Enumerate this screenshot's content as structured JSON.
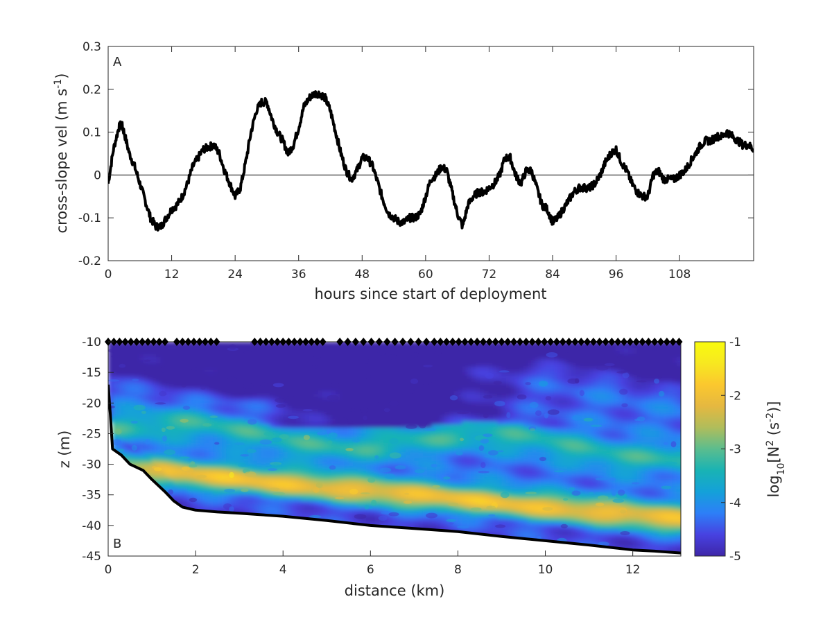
{
  "chart_data": [
    {
      "type": "line",
      "panel_label": "A",
      "xlabel": "hours since start of deployment",
      "ylabel": "cross-slope vel (m s",
      "ylabel_sup": "-1",
      "ylabel_close": ")",
      "xlim": [
        0,
        122
      ],
      "ylim": [
        -0.2,
        0.3
      ],
      "xticks": [
        0,
        12,
        24,
        36,
        48,
        60,
        72,
        84,
        96,
        108
      ],
      "yticks": [
        -0.2,
        -0.1,
        0,
        0.1,
        0.2,
        0.3
      ],
      "xtick_labels": [
        "0",
        "12",
        "24",
        "36",
        "48",
        "60",
        "72",
        "84",
        "96",
        "108"
      ],
      "ytick_labels": [
        "-0.2",
        "-0.1",
        "0",
        "0.1",
        "0.2",
        "0.3"
      ],
      "reference_line_y": 0,
      "series": [
        {
          "color": "#000000",
          "x": [
            0,
            1,
            2,
            2.5,
            3,
            4,
            5,
            6,
            7,
            8,
            9,
            10,
            11,
            12,
            13,
            14,
            15,
            16,
            17,
            18,
            19,
            20,
            21,
            22,
            23,
            24,
            25,
            26,
            27,
            28,
            29,
            30,
            31,
            32,
            33,
            34,
            35,
            36,
            37,
            38,
            39,
            40,
            41,
            42,
            43,
            44,
            45,
            46,
            47,
            48,
            49,
            50,
            51,
            52,
            53,
            54,
            55,
            56,
            57,
            58,
            59,
            60,
            61,
            62,
            63,
            64,
            65,
            66,
            67,
            68,
            69,
            70,
            71,
            72,
            73,
            74,
            75,
            76,
            77,
            78,
            79,
            80,
            81,
            82,
            83,
            84,
            85,
            86,
            87,
            88,
            89,
            90,
            91,
            92,
            93,
            94,
            95,
            96,
            97,
            98,
            99,
            100,
            101,
            102,
            103,
            104,
            105,
            106,
            107,
            108,
            109,
            110,
            111,
            112,
            113,
            114,
            115,
            116,
            117,
            118,
            119,
            120,
            121,
            122
          ],
          "y": [
            -0.02,
            0.06,
            0.11,
            0.12,
            0.1,
            0.05,
            0.02,
            -0.02,
            -0.06,
            -0.1,
            -0.12,
            -0.12,
            -0.1,
            -0.08,
            -0.07,
            -0.05,
            -0.02,
            0.02,
            0.04,
            0.06,
            0.065,
            0.07,
            0.05,
            0.01,
            -0.02,
            -0.05,
            -0.03,
            0.03,
            0.1,
            0.15,
            0.17,
            0.17,
            0.13,
            0.1,
            0.08,
            0.05,
            0.07,
            0.11,
            0.16,
            0.18,
            0.19,
            0.19,
            0.18,
            0.15,
            0.1,
            0.05,
            0.01,
            -0.01,
            0.01,
            0.04,
            0.04,
            0.02,
            -0.02,
            -0.06,
            -0.09,
            -0.1,
            -0.11,
            -0.11,
            -0.1,
            -0.1,
            -0.09,
            -0.05,
            -0.01,
            0.0,
            0.02,
            0.01,
            -0.04,
            -0.09,
            -0.12,
            -0.07,
            -0.05,
            -0.04,
            -0.04,
            -0.03,
            -0.02,
            0.0,
            0.04,
            0.04,
            0.0,
            -0.02,
            0.01,
            0.01,
            -0.03,
            -0.07,
            -0.08,
            -0.11,
            -0.1,
            -0.08,
            -0.06,
            -0.04,
            -0.03,
            -0.03,
            -0.03,
            -0.02,
            0.0,
            0.03,
            0.05,
            0.06,
            0.03,
            0.01,
            -0.02,
            -0.04,
            -0.05,
            -0.05,
            0.0,
            0.01,
            -0.01,
            -0.01,
            -0.01,
            0.0,
            0.01,
            0.03,
            0.05,
            0.07,
            0.08,
            0.08,
            0.09,
            0.09,
            0.1,
            0.09,
            0.08,
            0.07,
            0.07,
            0.06
          ]
        }
      ]
    },
    {
      "type": "heatmap",
      "panel_label": "B",
      "xlabel": "distance (km)",
      "ylabel": "z (m)",
      "xlim": [
        0,
        13.1
      ],
      "ylim": [
        -45,
        -10
      ],
      "xticks": [
        0,
        2,
        4,
        6,
        8,
        10,
        12
      ],
      "yticks": [
        -45,
        -40,
        -35,
        -30,
        -25,
        -20,
        -15,
        -10
      ],
      "xtick_labels": [
        "0",
        "2",
        "4",
        "6",
        "8",
        "10",
        "12"
      ],
      "ytick_labels": [
        "-45",
        "-40",
        "-35",
        "-30",
        "-25",
        "-20",
        "-15",
        "-10"
      ],
      "colorbar": {
        "label_prefix": "log",
        "label_sub": "10",
        "label_mid": "[N",
        "label_sup": "2",
        "label_mid2": " (s",
        "label_sup2": "-2",
        "label_close": ")]",
        "range": [
          -5,
          -1
        ],
        "ticks": [
          -5,
          -4,
          -3,
          -2,
          -1
        ],
        "tick_labels": [
          "-5",
          "-4",
          "-3",
          "-2",
          "-1"
        ],
        "colormap": [
          "#3e26a8",
          "#4742e1",
          "#2d7ff7",
          "#14a1d9",
          "#19b3b4",
          "#5bbd8e",
          "#b0bd5b",
          "#e5b840",
          "#fbc82e",
          "#f7e820",
          "#f9fb0e"
        ]
      },
      "bottom_profile": {
        "x": [
          0.0,
          0.05,
          0.1,
          0.3,
          0.5,
          0.8,
          1.0,
          1.3,
          1.5,
          1.7,
          2.0,
          2.5,
          3.0,
          4.0,
          5.0,
          6.0,
          7.0,
          8.0,
          9.0,
          10.0,
          11.0,
          12.0,
          12.5,
          13.1
        ],
        "z": [
          -17,
          -22,
          -27.5,
          -28.5,
          -30,
          -31,
          -32.5,
          -34.5,
          -36,
          -37,
          -37.5,
          -37.8,
          -38,
          -38.5,
          -39.2,
          -40,
          -40.5,
          -41,
          -41.8,
          -42.5,
          -43.2,
          -44,
          -44.2,
          -44.5
        ]
      },
      "station_markers": {
        "z": -10,
        "x": [
          0.0,
          0.13,
          0.26,
          0.39,
          0.52,
          0.65,
          0.78,
          0.91,
          1.04,
          1.17,
          1.3,
          1.57,
          1.7,
          1.83,
          1.96,
          2.09,
          2.22,
          2.35,
          2.48,
          3.35,
          3.48,
          3.61,
          3.74,
          3.87,
          4.0,
          4.13,
          4.26,
          4.39,
          4.52,
          4.65,
          4.78,
          4.91,
          5.3,
          5.48,
          5.66,
          5.84,
          6.02,
          6.2,
          6.38,
          6.56,
          6.74,
          6.92,
          7.1,
          7.28,
          7.46,
          7.6,
          7.74,
          7.88,
          8.02,
          8.16,
          8.3,
          8.44,
          8.58,
          8.72,
          8.86,
          9.0,
          9.14,
          9.28,
          9.42,
          9.56,
          9.7,
          9.84,
          9.98,
          10.12,
          10.26,
          10.4,
          10.54,
          10.68,
          10.82,
          10.96,
          11.1,
          11.24,
          11.38,
          11.52,
          11.66,
          11.8,
          11.94,
          12.08,
          12.22,
          12.36,
          12.5,
          12.64,
          12.78,
          12.92,
          13.06
        ]
      }
    }
  ]
}
